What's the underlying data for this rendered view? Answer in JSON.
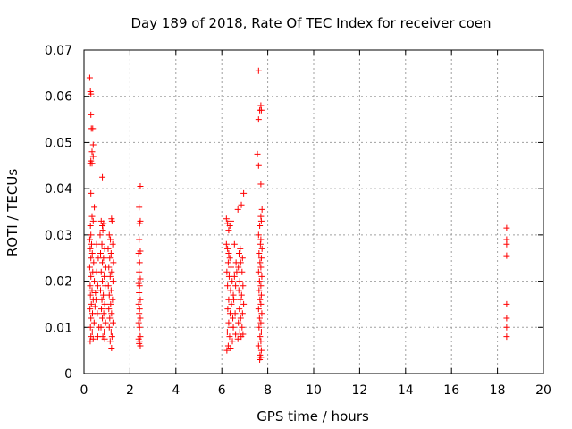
{
  "chart_data": {
    "type": "scatter",
    "title": "Day 189 of 2018, Rate Of TEC Index for receiver coen",
    "xlabel": "GPS time / hours",
    "ylabel": "ROTI / TECUs",
    "xlim": [
      0,
      20
    ],
    "ylim": [
      0,
      0.07
    ],
    "xticks": [
      "0",
      "2",
      "4",
      "6",
      "8",
      "10",
      "12",
      "14",
      "16",
      "18",
      "20"
    ],
    "yticks": [
      "0",
      "0.01",
      "0.02",
      "0.03",
      "0.04",
      "0.05",
      "0.06",
      "0.07"
    ],
    "grid": true,
    "marker": "+",
    "series": [
      {
        "name": "ROTI",
        "color": "#ff0000",
        "points": [
          [
            0.25,
            0.064
          ],
          [
            0.28,
            0.061
          ],
          [
            0.3,
            0.0605
          ],
          [
            0.3,
            0.056
          ],
          [
            0.32,
            0.053
          ],
          [
            0.38,
            0.053
          ],
          [
            0.4,
            0.0495
          ],
          [
            0.35,
            0.048
          ],
          [
            0.4,
            0.047
          ],
          [
            0.3,
            0.046
          ],
          [
            0.28,
            0.0455
          ],
          [
            0.35,
            0.0455
          ],
          [
            0.3,
            0.039
          ],
          [
            0.45,
            0.036
          ],
          [
            0.35,
            0.034
          ],
          [
            0.4,
            0.033
          ],
          [
            0.28,
            0.032
          ],
          [
            0.3,
            0.03
          ],
          [
            0.25,
            0.029
          ],
          [
            0.33,
            0.028
          ],
          [
            0.27,
            0.027
          ],
          [
            0.36,
            0.026
          ],
          [
            0.3,
            0.025
          ],
          [
            0.42,
            0.024
          ],
          [
            0.25,
            0.023
          ],
          [
            0.38,
            0.022
          ],
          [
            0.3,
            0.021
          ],
          [
            0.45,
            0.02
          ],
          [
            0.27,
            0.019
          ],
          [
            0.35,
            0.018
          ],
          [
            0.5,
            0.0175
          ],
          [
            0.28,
            0.017
          ],
          [
            0.4,
            0.016
          ],
          [
            0.32,
            0.015
          ],
          [
            0.48,
            0.0145
          ],
          [
            0.26,
            0.014
          ],
          [
            0.37,
            0.013
          ],
          [
            0.3,
            0.012
          ],
          [
            0.44,
            0.011
          ],
          [
            0.28,
            0.01
          ],
          [
            0.36,
            0.009
          ],
          [
            0.3,
            0.008
          ],
          [
            0.4,
            0.0075
          ],
          [
            0.27,
            0.007
          ],
          [
            0.55,
            0.022
          ],
          [
            0.6,
            0.019
          ],
          [
            0.52,
            0.016
          ],
          [
            0.58,
            0.013
          ],
          [
            0.62,
            0.025
          ],
          [
            0.55,
            0.028
          ],
          [
            0.65,
            0.01
          ],
          [
            0.6,
            0.008
          ],
          [
            0.8,
            0.0425
          ],
          [
            0.75,
            0.033
          ],
          [
            0.85,
            0.0325
          ],
          [
            0.8,
            0.032
          ],
          [
            0.82,
            0.031
          ],
          [
            0.7,
            0.03
          ],
          [
            0.78,
            0.028
          ],
          [
            0.9,
            0.027
          ],
          [
            0.72,
            0.026
          ],
          [
            0.85,
            0.025
          ],
          [
            0.8,
            0.024
          ],
          [
            0.95,
            0.023
          ],
          [
            0.75,
            0.022
          ],
          [
            0.88,
            0.021
          ],
          [
            0.8,
            0.02
          ],
          [
            0.92,
            0.019
          ],
          [
            0.72,
            0.018
          ],
          [
            0.84,
            0.017
          ],
          [
            0.78,
            0.016
          ],
          [
            0.9,
            0.015
          ],
          [
            0.76,
            0.014
          ],
          [
            0.86,
            0.013
          ],
          [
            0.8,
            0.012
          ],
          [
            0.94,
            0.011
          ],
          [
            0.74,
            0.01
          ],
          [
            0.88,
            0.009
          ],
          [
            0.82,
            0.008
          ],
          [
            0.9,
            0.0075
          ],
          [
            1.2,
            0.0335
          ],
          [
            1.22,
            0.033
          ],
          [
            1.1,
            0.03
          ],
          [
            1.15,
            0.029
          ],
          [
            1.25,
            0.028
          ],
          [
            1.05,
            0.027
          ],
          [
            1.18,
            0.026
          ],
          [
            1.12,
            0.025
          ],
          [
            1.28,
            0.024
          ],
          [
            1.08,
            0.023
          ],
          [
            1.2,
            0.022
          ],
          [
            1.14,
            0.021
          ],
          [
            1.26,
            0.02
          ],
          [
            1.06,
            0.019
          ],
          [
            1.18,
            0.018
          ],
          [
            1.1,
            0.017
          ],
          [
            1.24,
            0.016
          ],
          [
            1.16,
            0.015
          ],
          [
            1.08,
            0.014
          ],
          [
            1.2,
            0.013
          ],
          [
            1.12,
            0.012
          ],
          [
            1.26,
            0.011
          ],
          [
            1.1,
            0.01
          ],
          [
            1.18,
            0.009
          ],
          [
            1.22,
            0.008
          ],
          [
            1.14,
            0.007
          ],
          [
            1.2,
            0.0055
          ],
          [
            2.45,
            0.0405
          ],
          [
            2.4,
            0.036
          ],
          [
            2.45,
            0.033
          ],
          [
            2.42,
            0.0325
          ],
          [
            2.4,
            0.029
          ],
          [
            2.45,
            0.0265
          ],
          [
            2.38,
            0.026
          ],
          [
            2.42,
            0.024
          ],
          [
            2.4,
            0.022
          ],
          [
            2.45,
            0.0205
          ],
          [
            2.38,
            0.0195
          ],
          [
            2.42,
            0.019
          ],
          [
            2.4,
            0.0175
          ],
          [
            2.45,
            0.016
          ],
          [
            2.38,
            0.015
          ],
          [
            2.42,
            0.014
          ],
          [
            2.4,
            0.013
          ],
          [
            2.45,
            0.012
          ],
          [
            2.38,
            0.011
          ],
          [
            2.42,
            0.01
          ],
          [
            2.4,
            0.009
          ],
          [
            2.45,
            0.008
          ],
          [
            2.38,
            0.0075
          ],
          [
            2.42,
            0.007
          ],
          [
            2.4,
            0.0065
          ],
          [
            2.45,
            0.006
          ],
          [
            6.2,
            0.028
          ],
          [
            6.25,
            0.027
          ],
          [
            6.3,
            0.026
          ],
          [
            6.35,
            0.025
          ],
          [
            6.28,
            0.024
          ],
          [
            6.4,
            0.023
          ],
          [
            6.22,
            0.022
          ],
          [
            6.32,
            0.021
          ],
          [
            6.45,
            0.02
          ],
          [
            6.25,
            0.019
          ],
          [
            6.38,
            0.018
          ],
          [
            6.5,
            0.017
          ],
          [
            6.3,
            0.016
          ],
          [
            6.42,
            0.015
          ],
          [
            6.26,
            0.014
          ],
          [
            6.36,
            0.013
          ],
          [
            6.48,
            0.012
          ],
          [
            6.3,
            0.011
          ],
          [
            6.4,
            0.01
          ],
          [
            6.24,
            0.009
          ],
          [
            6.34,
            0.008
          ],
          [
            6.46,
            0.007
          ],
          [
            6.28,
            0.006
          ],
          [
            6.38,
            0.0055
          ],
          [
            6.22,
            0.005
          ],
          [
            6.55,
            0.021
          ],
          [
            6.6,
            0.019
          ],
          [
            6.52,
            0.016
          ],
          [
            6.58,
            0.013
          ],
          [
            6.62,
            0.024
          ],
          [
            6.55,
            0.028
          ],
          [
            6.65,
            0.022
          ],
          [
            6.5,
            0.01
          ],
          [
            6.6,
            0.0085
          ],
          [
            6.3,
            0.031
          ],
          [
            6.35,
            0.032
          ],
          [
            6.4,
            0.033
          ],
          [
            6.2,
            0.0335
          ],
          [
            6.25,
            0.0325
          ],
          [
            6.7,
            0.0355
          ],
          [
            6.85,
            0.0365
          ],
          [
            6.95,
            0.039
          ],
          [
            6.8,
            0.027
          ],
          [
            6.75,
            0.026
          ],
          [
            6.9,
            0.025
          ],
          [
            6.82,
            0.024
          ],
          [
            6.72,
            0.023
          ],
          [
            6.88,
            0.022
          ],
          [
            6.78,
            0.02
          ],
          [
            6.92,
            0.019
          ],
          [
            6.74,
            0.018
          ],
          [
            6.86,
            0.017
          ],
          [
            6.8,
            0.016
          ],
          [
            6.95,
            0.015
          ],
          [
            6.76,
            0.014
          ],
          [
            6.9,
            0.013
          ],
          [
            6.82,
            0.012
          ],
          [
            6.72,
            0.011
          ],
          [
            6.88,
            0.01
          ],
          [
            6.78,
            0.009
          ],
          [
            6.92,
            0.0085
          ],
          [
            6.84,
            0.008
          ],
          [
            6.7,
            0.0075
          ],
          [
            7.6,
            0.0655
          ],
          [
            7.7,
            0.058
          ],
          [
            7.65,
            0.057
          ],
          [
            7.72,
            0.057
          ],
          [
            7.6,
            0.055
          ],
          [
            7.55,
            0.0475
          ],
          [
            7.6,
            0.045
          ],
          [
            7.7,
            0.041
          ],
          [
            7.75,
            0.0355
          ],
          [
            7.7,
            0.034
          ],
          [
            7.72,
            0.033
          ],
          [
            7.65,
            0.032
          ],
          [
            7.6,
            0.03
          ],
          [
            7.7,
            0.029
          ],
          [
            7.68,
            0.028
          ],
          [
            7.75,
            0.027
          ],
          [
            7.62,
            0.026
          ],
          [
            7.72,
            0.025
          ],
          [
            7.66,
            0.024
          ],
          [
            7.7,
            0.023
          ],
          [
            7.6,
            0.022
          ],
          [
            7.74,
            0.021
          ],
          [
            7.64,
            0.02
          ],
          [
            7.7,
            0.019
          ],
          [
            7.62,
            0.018
          ],
          [
            7.72,
            0.017
          ],
          [
            7.66,
            0.016
          ],
          [
            7.7,
            0.015
          ],
          [
            7.6,
            0.014
          ],
          [
            7.74,
            0.013
          ],
          [
            7.64,
            0.012
          ],
          [
            7.7,
            0.011
          ],
          [
            7.62,
            0.01
          ],
          [
            7.72,
            0.009
          ],
          [
            7.66,
            0.008
          ],
          [
            7.7,
            0.007
          ],
          [
            7.6,
            0.006
          ],
          [
            7.72,
            0.005
          ],
          [
            7.66,
            0.004
          ],
          [
            7.7,
            0.0035
          ],
          [
            7.65,
            0.003
          ],
          [
            18.4,
            0.0315
          ],
          [
            18.4,
            0.029
          ],
          [
            18.4,
            0.028
          ],
          [
            18.4,
            0.0255
          ],
          [
            18.4,
            0.015
          ],
          [
            18.4,
            0.012
          ],
          [
            18.4,
            0.01
          ],
          [
            18.4,
            0.008
          ]
        ]
      }
    ]
  }
}
